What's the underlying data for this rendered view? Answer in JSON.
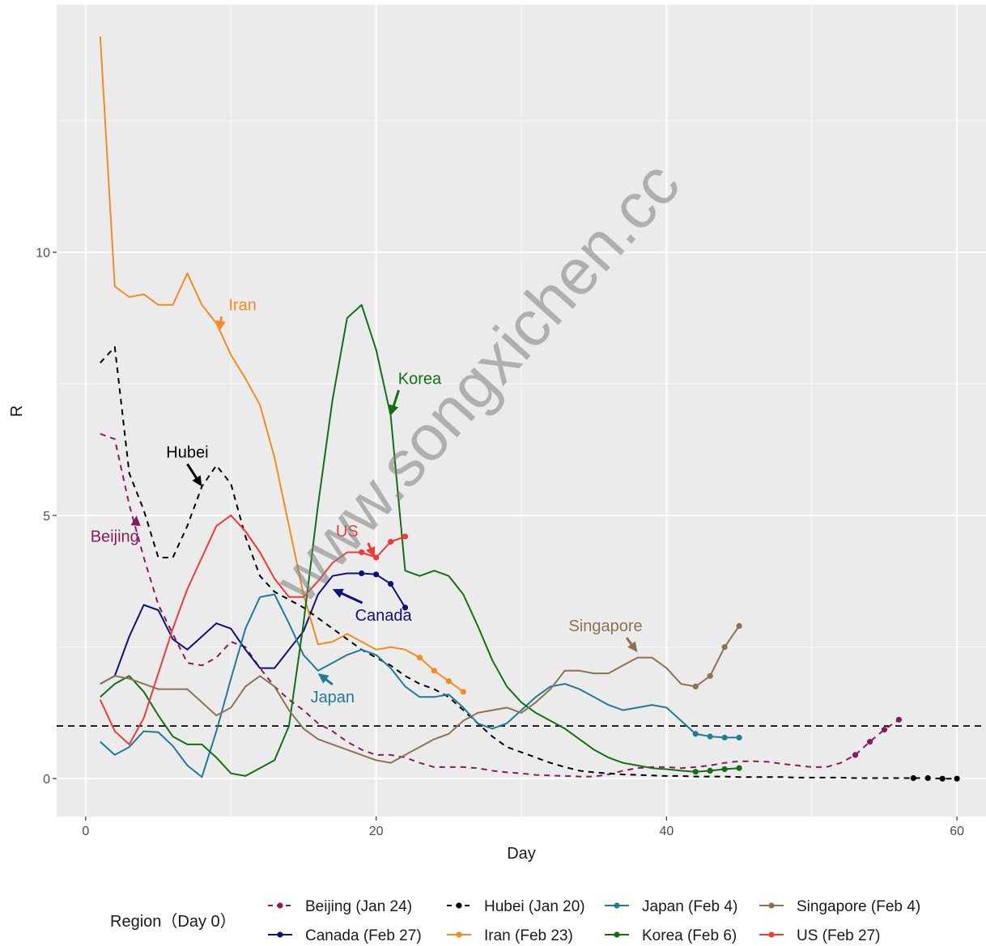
{
  "chart_data": {
    "type": "line",
    "xlabel": "Day",
    "ylabel": "R",
    "xlim": [
      -2,
      62
    ],
    "ylim": [
      -0.72,
      14.7
    ],
    "x_ticks": [
      0,
      20,
      40,
      60
    ],
    "y_ticks": [
      0,
      5,
      10
    ],
    "reference_line": {
      "y": 1,
      "style": "dashed"
    },
    "watermark": "www.songxichen.cc",
    "legend": {
      "title": "Region（Day 0）",
      "position": "bottom"
    },
    "series": [
      {
        "name": "Beijing (Jan 24)",
        "color": "#8b1a5b",
        "dashed": true,
        "x": [
          1,
          2,
          3,
          4,
          5,
          6,
          7,
          8,
          9,
          10,
          11,
          12,
          13,
          14,
          15,
          16,
          17,
          18,
          19,
          20,
          21,
          22,
          23,
          24,
          25,
          26,
          27,
          28,
          29,
          30,
          31,
          32,
          33,
          34,
          35,
          36,
          37,
          38,
          39,
          40,
          41,
          42,
          43,
          44,
          45,
          46,
          47,
          48,
          49,
          50,
          51,
          52,
          53,
          54,
          55,
          56
        ],
        "y": [
          6.55,
          6.45,
          5.2,
          4.2,
          3.3,
          2.75,
          2.2,
          2.15,
          2.3,
          2.6,
          2.5,
          2.1,
          1.75,
          1.5,
          1.3,
          1.05,
          0.9,
          0.7,
          0.55,
          0.45,
          0.45,
          0.4,
          0.3,
          0.22,
          0.22,
          0.22,
          0.2,
          0.15,
          0.12,
          0.1,
          0.07,
          0.06,
          0.05,
          0.04,
          0.04,
          0.08,
          0.15,
          0.2,
          0.22,
          0.22,
          0.2,
          0.22,
          0.25,
          0.3,
          0.33,
          0.33,
          0.32,
          0.28,
          0.25,
          0.22,
          0.22,
          0.3,
          0.45,
          0.7,
          0.93,
          1.12
        ],
        "points_from": 53
      },
      {
        "name": "Canada (Feb 27)",
        "color": "#10107a",
        "dashed": false,
        "x": [
          1,
          2,
          3,
          4,
          5,
          6,
          7,
          8,
          9,
          10,
          11,
          12,
          13,
          14,
          15,
          16,
          17,
          18,
          19,
          20,
          21,
          22
        ],
        "y": [
          1.8,
          1.95,
          2.7,
          3.3,
          3.2,
          2.65,
          2.45,
          2.7,
          2.95,
          2.85,
          2.45,
          2.1,
          2.1,
          2.45,
          2.8,
          3.5,
          3.85,
          3.9,
          3.9,
          3.88,
          3.7,
          3.25
        ],
        "points_from": 19
      },
      {
        "name": "Hubei (Jan 20)",
        "color": "#000000",
        "dashed": true,
        "x": [
          1,
          2,
          3,
          4,
          5,
          6,
          7,
          8,
          9,
          10,
          11,
          12,
          13,
          14,
          15,
          16,
          17,
          18,
          19,
          20,
          21,
          22,
          23,
          24,
          25,
          26,
          27,
          28,
          29,
          30,
          31,
          32,
          33,
          34,
          35,
          36,
          37,
          38,
          39,
          40,
          41,
          42,
          43,
          44,
          45,
          46,
          47,
          48,
          49,
          50,
          51,
          52,
          53,
          54,
          55,
          56,
          57,
          58,
          59,
          60
        ],
        "y": [
          7.9,
          8.2,
          5.8,
          5.1,
          4.2,
          4.2,
          4.8,
          5.55,
          5.95,
          5.6,
          4.6,
          3.85,
          3.55,
          3.4,
          3.25,
          3.05,
          2.85,
          2.65,
          2.45,
          2.3,
          2.15,
          1.95,
          1.8,
          1.7,
          1.55,
          1.3,
          1.05,
          0.8,
          0.6,
          0.5,
          0.4,
          0.3,
          0.22,
          0.15,
          0.12,
          0.1,
          0.08,
          0.07,
          0.06,
          0.05,
          0.05,
          0.04,
          0.04,
          0.04,
          0.03,
          0.03,
          0.03,
          0.03,
          0.02,
          0.02,
          0.02,
          0.02,
          0.01,
          0.01,
          0.01,
          0.01,
          0.01,
          0.01,
          0.0,
          0.0
        ],
        "points_from": 57
      },
      {
        "name": "Iran (Feb 23)",
        "color": "#f58a1f",
        "dashed": false,
        "x": [
          1,
          2,
          3,
          4,
          5,
          6,
          7,
          8,
          9,
          10,
          11,
          12,
          13,
          14,
          15,
          16,
          17,
          18,
          19,
          20,
          21,
          22,
          23,
          24,
          25,
          26
        ],
        "y": [
          14.1,
          9.35,
          9.15,
          9.2,
          9.0,
          9.0,
          9.6,
          9.0,
          8.65,
          8.05,
          7.6,
          7.1,
          6.1,
          4.8,
          3.5,
          2.55,
          2.6,
          2.75,
          2.6,
          2.45,
          2.5,
          2.45,
          2.3,
          2.05,
          1.85,
          1.65
        ],
        "points_from": 23
      },
      {
        "name": "Japan (Feb 4)",
        "color": "#1f7b96",
        "dashed": false,
        "x": [
          1,
          2,
          3,
          4,
          5,
          6,
          7,
          8,
          9,
          10,
          11,
          12,
          13,
          14,
          15,
          16,
          17,
          18,
          19,
          20,
          21,
          22,
          23,
          24,
          25,
          26,
          27,
          28,
          29,
          30,
          31,
          32,
          33,
          34,
          35,
          36,
          37,
          38,
          39,
          40,
          41,
          42,
          43,
          44,
          45
        ],
        "y": [
          0.7,
          0.45,
          0.6,
          0.9,
          0.88,
          0.62,
          0.25,
          0.03,
          0.9,
          1.9,
          2.85,
          3.45,
          3.5,
          2.95,
          2.35,
          2.05,
          2.2,
          2.35,
          2.45,
          2.35,
          2.1,
          1.75,
          1.55,
          1.55,
          1.6,
          1.35,
          1.05,
          0.95,
          1.05,
          1.3,
          1.55,
          1.75,
          1.8,
          1.7,
          1.55,
          1.4,
          1.3,
          1.35,
          1.4,
          1.35,
          1.1,
          0.85,
          0.8,
          0.78,
          0.78
        ],
        "points_from": 42
      },
      {
        "name": "Korea (Feb 6)",
        "color": "#127012",
        "dashed": false,
        "x": [
          1,
          2,
          3,
          4,
          5,
          6,
          7,
          8,
          9,
          10,
          11,
          12,
          13,
          14,
          15,
          16,
          17,
          18,
          19,
          20,
          21,
          22,
          23,
          24,
          25,
          26,
          27,
          28,
          29,
          30,
          31,
          32,
          33,
          34,
          35,
          36,
          37,
          38,
          39,
          40,
          41,
          42,
          43,
          44,
          45
        ],
        "y": [
          1.55,
          1.8,
          1.95,
          1.65,
          1.2,
          0.8,
          0.65,
          0.65,
          0.4,
          0.1,
          0.05,
          0.2,
          0.35,
          1.0,
          2.95,
          5.2,
          7.2,
          8.75,
          9.0,
          8.15,
          6.9,
          3.95,
          3.85,
          3.95,
          3.85,
          3.5,
          2.9,
          2.25,
          1.75,
          1.45,
          1.25,
          1.1,
          0.95,
          0.75,
          0.55,
          0.4,
          0.3,
          0.25,
          0.2,
          0.18,
          0.15,
          0.13,
          0.15,
          0.18,
          0.2
        ],
        "points_from": 42
      },
      {
        "name": "Singapore (Feb 4)",
        "color": "#8b7355",
        "dashed": false,
        "x": [
          1,
          2,
          3,
          4,
          5,
          6,
          7,
          8,
          9,
          10,
          11,
          12,
          13,
          14,
          15,
          16,
          17,
          18,
          19,
          20,
          21,
          22,
          23,
          24,
          25,
          26,
          27,
          28,
          29,
          30,
          31,
          32,
          33,
          34,
          35,
          36,
          37,
          38,
          39,
          40,
          41,
          42,
          43,
          44,
          45
        ],
        "y": [
          1.8,
          1.95,
          1.9,
          1.8,
          1.7,
          1.7,
          1.7,
          1.45,
          1.2,
          1.35,
          1.75,
          1.95,
          1.75,
          1.3,
          0.95,
          0.75,
          0.65,
          0.55,
          0.45,
          0.35,
          0.3,
          0.45,
          0.6,
          0.75,
          0.85,
          1.1,
          1.25,
          1.3,
          1.35,
          1.25,
          1.45,
          1.7,
          2.05,
          2.05,
          2.0,
          2.0,
          2.15,
          2.3,
          2.3,
          2.1,
          1.8,
          1.75,
          1.95,
          2.5,
          2.9
        ],
        "points_from": 42
      },
      {
        "name": "US (Feb 27)",
        "color": "#ee3a3a",
        "dashed": false,
        "x": [
          1,
          2,
          3,
          4,
          5,
          6,
          7,
          8,
          9,
          10,
          11,
          12,
          13,
          14,
          15,
          16,
          17,
          18,
          19,
          20,
          21,
          22
        ],
        "y": [
          1.5,
          0.9,
          0.65,
          1.15,
          2.0,
          2.85,
          3.6,
          4.2,
          4.8,
          5.0,
          4.7,
          4.3,
          3.8,
          3.45,
          3.45,
          3.75,
          4.1,
          4.3,
          4.3,
          4.2,
          4.5,
          4.6
        ],
        "points_from": 19
      }
    ],
    "annotations": [
      {
        "label": "Iran",
        "series": "Iran (Feb 23)",
        "color": "#f58a1f",
        "point": [
          9.2,
          8.5
        ],
        "text_at": [
          10.8,
          8.9
        ]
      },
      {
        "label": "Korea",
        "series": "Korea (Feb 6)",
        "color": "#127012",
        "point": [
          21.0,
          6.9
        ],
        "text_at": [
          23.0,
          7.5
        ]
      },
      {
        "label": "Hubei",
        "series": "Hubei (Jan 20)",
        "color": "#000000",
        "point": [
          8.0,
          5.55
        ],
        "text_at": [
          7.0,
          6.1
        ]
      },
      {
        "label": "Beijing",
        "series": "Beijing (Jan 24)",
        "color": "#8b1a5b",
        "point": [
          3.5,
          5.0
        ],
        "text_at": [
          2.0,
          4.5
        ]
      },
      {
        "label": "US",
        "series": "US (Feb 27)",
        "color": "#ee3a3a",
        "point": [
          19.9,
          4.2
        ],
        "text_at": [
          18.0,
          4.6
        ]
      },
      {
        "label": "Canada",
        "series": "Canada (Feb 27)",
        "color": "#10107a",
        "point": [
          17.0,
          3.6
        ],
        "text_at": [
          20.5,
          3.0
        ]
      },
      {
        "label": "Singapore",
        "series": "Singapore (Feb 4)",
        "color": "#8b7355",
        "point": [
          38.0,
          2.4
        ],
        "text_at": [
          35.8,
          2.8
        ]
      },
      {
        "label": "Japan",
        "series": "Japan (Feb 4)",
        "color": "#1f7b96",
        "point": [
          16.0,
          2.0
        ],
        "text_at": [
          17.0,
          1.45
        ]
      }
    ]
  }
}
